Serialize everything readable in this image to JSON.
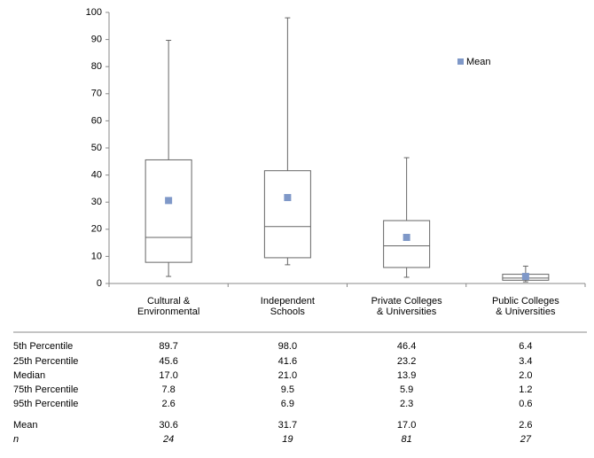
{
  "chart_data": {
    "type": "box",
    "categories": [
      [
        "Cultural &",
        "Environmental"
      ],
      [
        "Independent",
        "Schools"
      ],
      [
        "Private Colleges",
        "& Universities"
      ],
      [
        "Public Colleges",
        "& Universities"
      ]
    ],
    "ylim": [
      0,
      100
    ],
    "yticks": [
      0,
      10,
      20,
      30,
      40,
      50,
      60,
      70,
      80,
      90,
      100
    ],
    "box_color": "#666666",
    "mean_color": "#7f98c8",
    "legend": "top-right",
    "rows": [
      {
        "name": "5th Percentile",
        "values": [
          89.7,
          98.0,
          46.4,
          6.4
        ],
        "value_labels": [
          "89.7",
          "98.0",
          "46.4",
          "6.4"
        ]
      },
      {
        "name": "25th Percentile",
        "values": [
          45.6,
          41.6,
          23.2,
          3.4
        ],
        "value_labels": [
          "45.6",
          "41.6",
          "23.2",
          "3.4"
        ]
      },
      {
        "name": "Median",
        "values": [
          17.0,
          21.0,
          13.9,
          2.0
        ],
        "value_labels": [
          "17.0",
          "21.0",
          "13.9",
          "2.0"
        ]
      },
      {
        "name": "75th Percentile",
        "values": [
          7.8,
          9.5,
          5.9,
          1.2
        ],
        "value_labels": [
          "7.8",
          "9.5",
          "5.9",
          "1.2"
        ]
      },
      {
        "name": "95th Percentile",
        "values": [
          2.6,
          6.9,
          2.3,
          0.6
        ],
        "value_labels": [
          "2.6",
          "6.9",
          "2.3",
          "0.6"
        ]
      },
      {
        "name": "Mean",
        "values": [
          30.6,
          31.7,
          17.0,
          2.6
        ],
        "value_labels": [
          "30.6",
          "31.7",
          "17.0",
          "2.6"
        ]
      },
      {
        "name": "n",
        "values": [
          24,
          19,
          81,
          27
        ]
      }
    ]
  }
}
